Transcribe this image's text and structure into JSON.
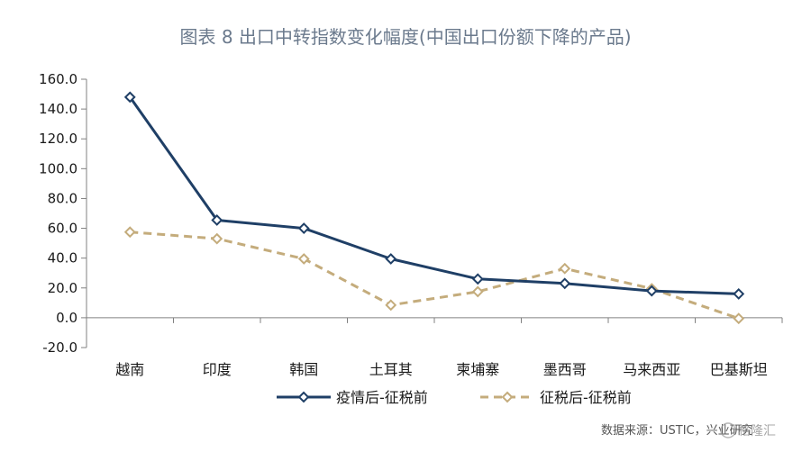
{
  "chart_data": {
    "type": "line",
    "title": "图表 8 出口中转指数变化幅度(中国出口份额下降的产品)",
    "categories": [
      "越南",
      "印度",
      "韩国",
      "土耳其",
      "柬埔寨",
      "墨西哥",
      "马来西亚",
      "巴基斯坦"
    ],
    "y_ticks": [
      "160.0",
      "140.0",
      "120.0",
      "100.0",
      "80.0",
      "60.0",
      "40.0",
      "20.0",
      "0.0",
      "-20.0"
    ],
    "ylim": [
      -20,
      160
    ],
    "grid": false,
    "legend_position": "bottom",
    "series": [
      {
        "name": "疫情后-征税前",
        "values": [
          148,
          65.5,
          60,
          39.5,
          26,
          23,
          18,
          16
        ],
        "color": "#1f3f66",
        "style": "solid",
        "marker": "diamond"
      },
      {
        "name": "征税后-征税前",
        "values": [
          57.5,
          53,
          39.5,
          8.5,
          17.5,
          33,
          19.5,
          -0.5
        ],
        "color": "#c4ac7c",
        "style": "dashed",
        "marker": "diamond"
      }
    ]
  },
  "source": "数据来源：USTIC，兴业研究",
  "watermark": "格隆汇"
}
